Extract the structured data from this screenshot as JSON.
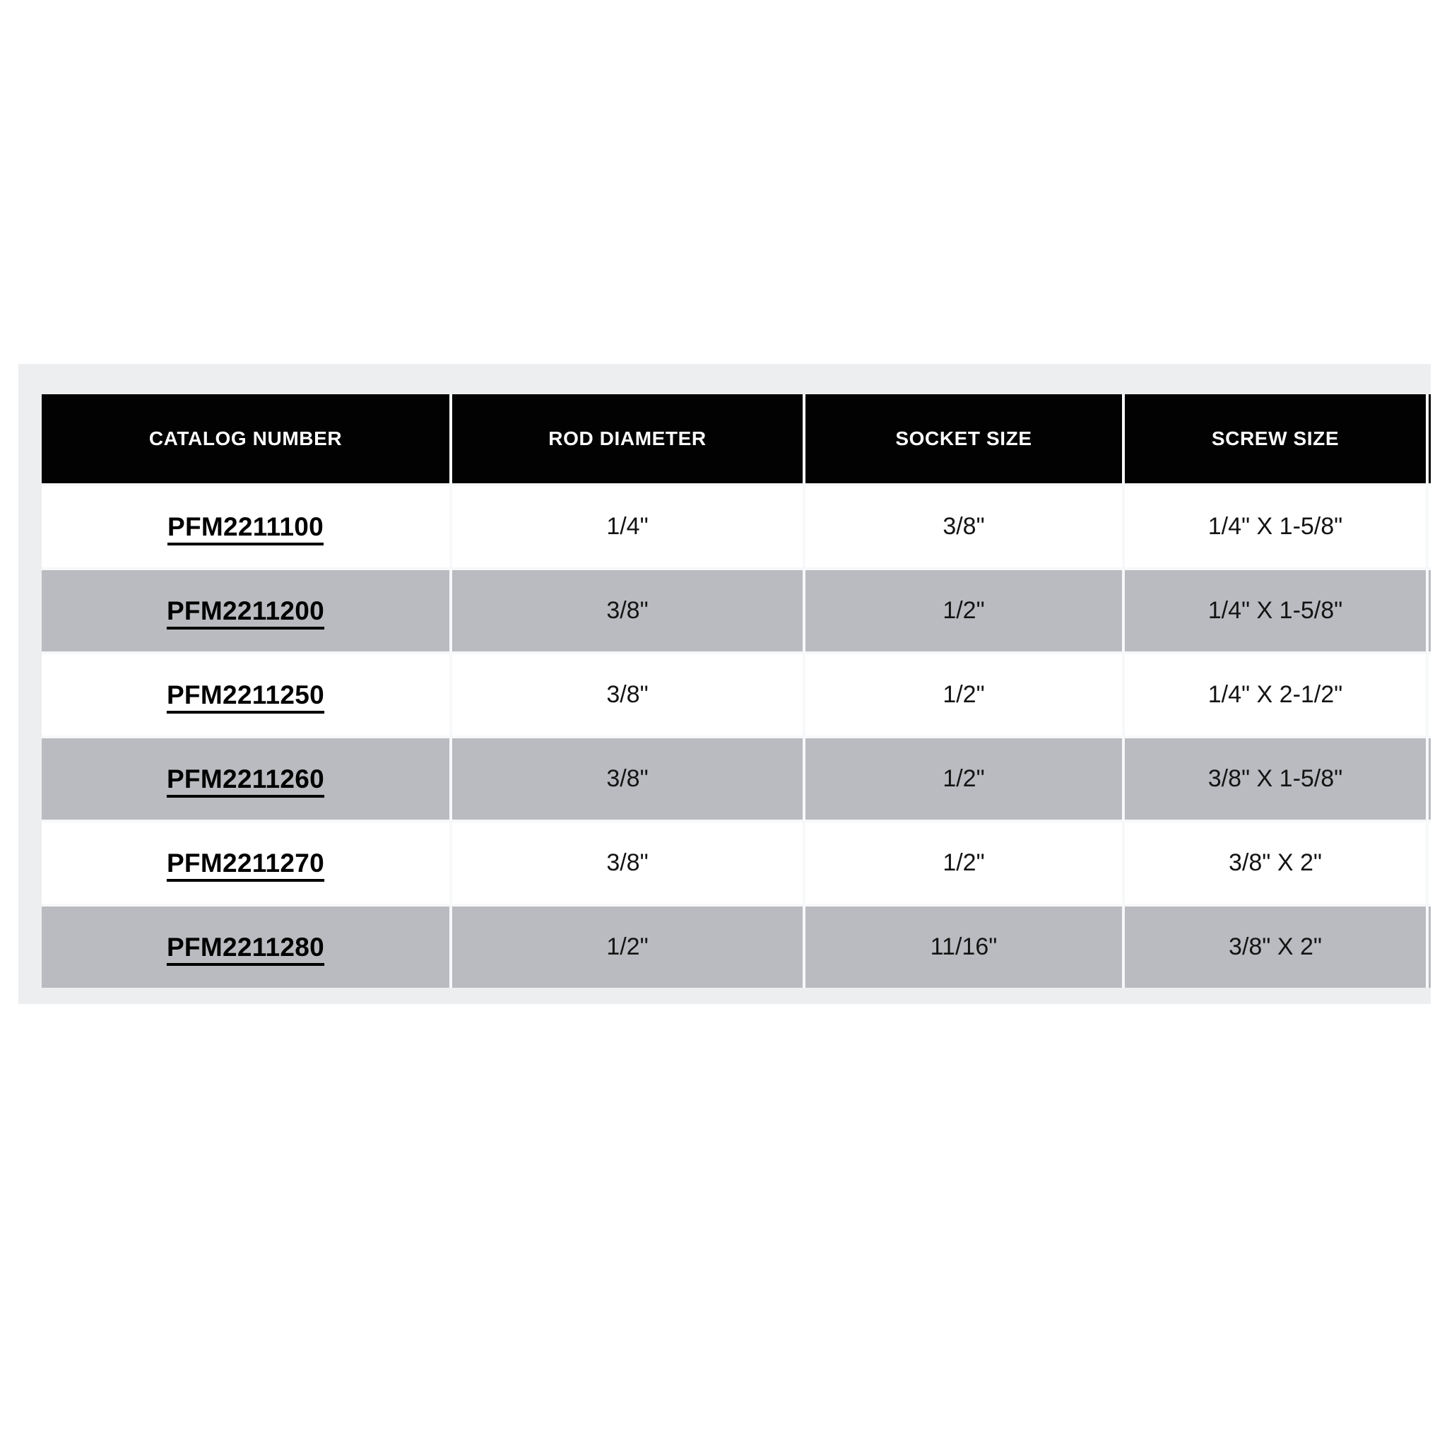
{
  "page": {
    "background": "#ffffff",
    "panel_background": "#edeef0"
  },
  "table": {
    "headers": [
      "CATALOG NUMBER",
      "ROD DIAMETER",
      "SOCKET SIZE",
      "SCREW SIZE"
    ],
    "header_background": "#000000",
    "header_text_color": "#ffffff",
    "stripe_color": "#b9bbc0",
    "link_color": "#000000",
    "rows": [
      {
        "catalog": "PFM2211100",
        "rod_diameter": "1/4\"",
        "socket_size": "3/8\"",
        "screw_size": "1/4\" X 1-5/8\""
      },
      {
        "catalog": "PFM2211200",
        "rod_diameter": "3/8\"",
        "socket_size": "1/2\"",
        "screw_size": "1/4\" X 1-5/8\""
      },
      {
        "catalog": "PFM2211250",
        "rod_diameter": "3/8\"",
        "socket_size": "1/2\"",
        "screw_size": "1/4\" X 2-1/2\""
      },
      {
        "catalog": "PFM2211260",
        "rod_diameter": "3/8\"",
        "socket_size": "1/2\"",
        "screw_size": "3/8\" X 1-5/8\""
      },
      {
        "catalog": "PFM2211270",
        "rod_diameter": "3/8\"",
        "socket_size": "1/2\"",
        "screw_size": "3/8\" X 2\""
      },
      {
        "catalog": "PFM2211280",
        "rod_diameter": "1/2\"",
        "socket_size": "11/16\"",
        "screw_size": "3/8\" X 2\""
      }
    ]
  }
}
